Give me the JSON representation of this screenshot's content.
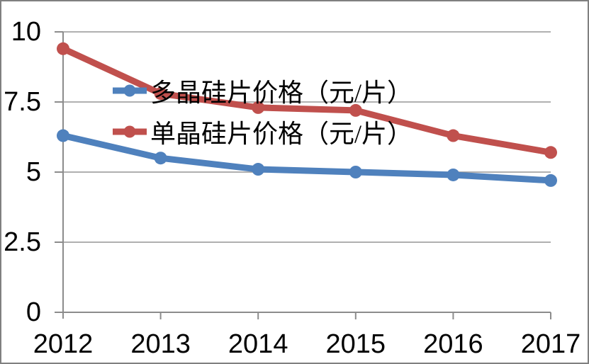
{
  "chart_data": {
    "type": "line",
    "title": "",
    "xlabel": "",
    "ylabel": "",
    "categories": [
      "2012",
      "2013",
      "2014",
      "2015",
      "2016",
      "2017"
    ],
    "series": [
      {
        "name": "多晶硅片价格（元/片）",
        "values": [
          6.3,
          5.5,
          5.1,
          5.0,
          4.9,
          4.7
        ],
        "color": "#4F81BD",
        "marker": "circle"
      },
      {
        "name": "单晶硅片价格（元/片）",
        "values": [
          9.4,
          7.8,
          7.3,
          7.2,
          6.3,
          5.7
        ],
        "color": "#C0504D",
        "marker": "circle"
      }
    ],
    "ylim": [
      0,
      10
    ],
    "yticks": [
      0,
      2.5,
      5,
      7.5,
      10
    ],
    "ytick_labels": [
      "0",
      "2.5",
      "5",
      "7.5",
      "10"
    ],
    "grid": true,
    "legend_position": "inside-top-left",
    "colors": {
      "gridline": "#969696",
      "axis": "#8C8C8C",
      "text": "#000000",
      "background": "#FFFFFF",
      "frame_border": "#808080"
    }
  }
}
